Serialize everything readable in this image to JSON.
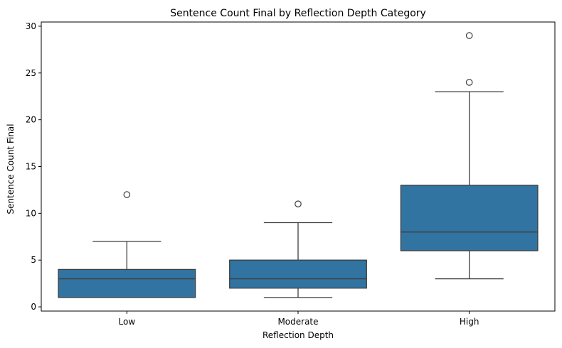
{
  "chart_data": {
    "type": "box",
    "title": "Sentence Count Final by Reflection Depth Category",
    "xlabel": "Reflection Depth",
    "ylabel": "Sentence Count Final",
    "categories": [
      "Low",
      "Moderate",
      "High"
    ],
    "yticks": [
      0,
      5,
      10,
      15,
      20,
      25,
      30
    ],
    "ylim": [
      -0.45,
      30.45
    ],
    "box_color": "#3274a1",
    "line_color": "#3d3d3d",
    "boxes": [
      {
        "category": "Low",
        "whisker_low": 1,
        "q1": 1,
        "median": 3,
        "q3": 4,
        "whisker_high": 7,
        "outliers": [
          12
        ]
      },
      {
        "category": "Moderate",
        "whisker_low": 1,
        "q1": 2,
        "median": 3,
        "q3": 5,
        "whisker_high": 9,
        "outliers": [
          11
        ]
      },
      {
        "category": "High",
        "whisker_low": 3,
        "q1": 6,
        "median": 8,
        "q3": 13,
        "whisker_high": 23,
        "outliers": [
          24,
          29
        ]
      }
    ]
  }
}
